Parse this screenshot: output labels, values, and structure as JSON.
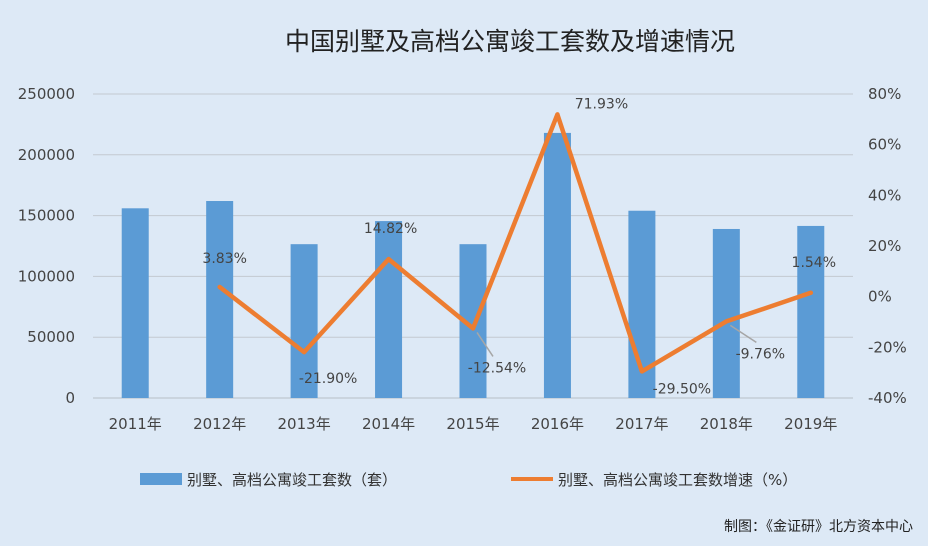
{
  "chart_data": {
    "type": "bar",
    "title": "中国别墅及高档公寓竣工套数及增速情况",
    "categories": [
      "2011年",
      "2012年",
      "2013年",
      "2014年",
      "2015年",
      "2016年",
      "2017年",
      "2018年",
      "2019年"
    ],
    "series": [
      {
        "name": "别墅、高档公寓竣工套数（套）",
        "type": "bar",
        "axis": "left",
        "color": "#5b9bd5",
        "values": [
          156000,
          162000,
          126500,
          145500,
          126500,
          218000,
          154000,
          139000,
          141500
        ]
      },
      {
        "name": "别墅、高档公寓竣工套数增速（%）",
        "type": "line",
        "axis": "right",
        "color": "#ed7d31",
        "values": [
          null,
          3.83,
          -21.9,
          14.82,
          -12.54,
          71.93,
          -29.5,
          -9.76,
          1.54
        ],
        "labels": [
          "",
          "3.83%",
          "-21.90%",
          "14.82%",
          "-12.54%",
          "71.93%",
          "-29.50%",
          "-9.76%",
          "1.54%"
        ]
      }
    ],
    "y_left": {
      "ylim": [
        0,
        250000
      ],
      "ticks": [
        0,
        50000,
        100000,
        150000,
        200000,
        250000
      ],
      "tick_labels": [
        "0",
        "50000",
        "100000",
        "150000",
        "200000",
        "250000"
      ]
    },
    "y_right": {
      "ylim": [
        -40,
        80
      ],
      "ticks": [
        -40,
        -20,
        0,
        20,
        40,
        60,
        80
      ],
      "tick_labels": [
        "-40%",
        "-20%",
        "0%",
        "20%",
        "40%",
        "60%",
        "80%"
      ]
    },
    "grid": true,
    "legend_position": "bottom"
  },
  "source_note": "制图：《金证研》北方资本中心"
}
